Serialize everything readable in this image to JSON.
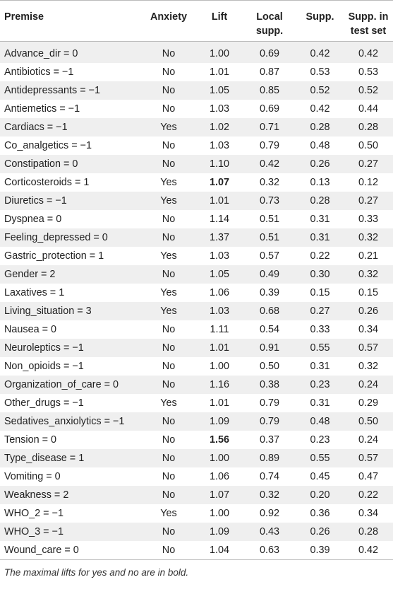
{
  "headers": [
    "Premise",
    "Anxiety",
    "Lift",
    "Local\nsupp.",
    "Supp.",
    "Supp. in\ntest set"
  ],
  "rows": [
    [
      "Advance_dir = 0",
      "No",
      "1.00",
      "0.69",
      "0.42",
      "0.42"
    ],
    [
      "Antibiotics = −1",
      "No",
      "1.01",
      "0.87",
      "0.53",
      "0.53"
    ],
    [
      "Antidepressants = −1",
      "No",
      "1.05",
      "0.85",
      "0.52",
      "0.52"
    ],
    [
      "Antiemetics = −1",
      "No",
      "1.03",
      "0.69",
      "0.42",
      "0.44"
    ],
    [
      "Cardiacs = −1",
      "Yes",
      "1.02",
      "0.71",
      "0.28",
      "0.28"
    ],
    [
      "Co_analgetics = −1",
      "No",
      "1.03",
      "0.79",
      "0.48",
      "0.50"
    ],
    [
      "Constipation = 0",
      "No",
      "1.10",
      "0.42",
      "0.26",
      "0.27"
    ],
    [
      "Corticosteroids = 1",
      "Yes",
      "1.07",
      "0.32",
      "0.13",
      "0.12"
    ],
    [
      "Diuretics = −1",
      "Yes",
      "1.01",
      "0.73",
      "0.28",
      "0.27"
    ],
    [
      "Dyspnea = 0",
      "No",
      "1.14",
      "0.51",
      "0.31",
      "0.33"
    ],
    [
      "Feeling_depressed = 0",
      "No",
      "1.37",
      "0.51",
      "0.31",
      "0.32"
    ],
    [
      "Gastric_protection = 1",
      "Yes",
      "1.03",
      "0.57",
      "0.22",
      "0.21"
    ],
    [
      "Gender = 2",
      "No",
      "1.05",
      "0.49",
      "0.30",
      "0.32"
    ],
    [
      "Laxatives = 1",
      "Yes",
      "1.06",
      "0.39",
      "0.15",
      "0.15"
    ],
    [
      "Living_situation = 3",
      "Yes",
      "1.03",
      "0.68",
      "0.27",
      "0.26"
    ],
    [
      "Nausea = 0",
      "No",
      "1.11",
      "0.54",
      "0.33",
      "0.34"
    ],
    [
      "Neuroleptics = −1",
      "No",
      "1.01",
      "0.91",
      "0.55",
      "0.57"
    ],
    [
      "Non_opioids = −1",
      "No",
      "1.00",
      "0.50",
      "0.31",
      "0.32"
    ],
    [
      "Organization_of_care = 0",
      "No",
      "1.16",
      "0.38",
      "0.23",
      "0.24"
    ],
    [
      "Other_drugs = −1",
      "Yes",
      "1.01",
      "0.79",
      "0.31",
      "0.29"
    ],
    [
      "Sedatives_anxiolytics = −1",
      "No",
      "1.09",
      "0.79",
      "0.48",
      "0.50"
    ],
    [
      "Tension = 0",
      "No",
      "1.56",
      "0.37",
      "0.23",
      "0.24"
    ],
    [
      "Type_disease = 1",
      "No",
      "1.00",
      "0.89",
      "0.55",
      "0.57"
    ],
    [
      "Vomiting = 0",
      "No",
      "1.06",
      "0.74",
      "0.45",
      "0.47"
    ],
    [
      "Weakness = 2",
      "No",
      "1.07",
      "0.32",
      "0.20",
      "0.22"
    ],
    [
      "WHO_2 = −1",
      "Yes",
      "1.00",
      "0.92",
      "0.36",
      "0.34"
    ],
    [
      "WHO_3 = −1",
      "No",
      "1.09",
      "0.43",
      "0.26",
      "0.28"
    ],
    [
      "Wound_care = 0",
      "No",
      "1.04",
      "0.63",
      "0.39",
      "0.42"
    ]
  ],
  "bold_lift_rows": [
    7,
    21
  ],
  "footnote": "The maximal lifts for yes and no are in bold."
}
